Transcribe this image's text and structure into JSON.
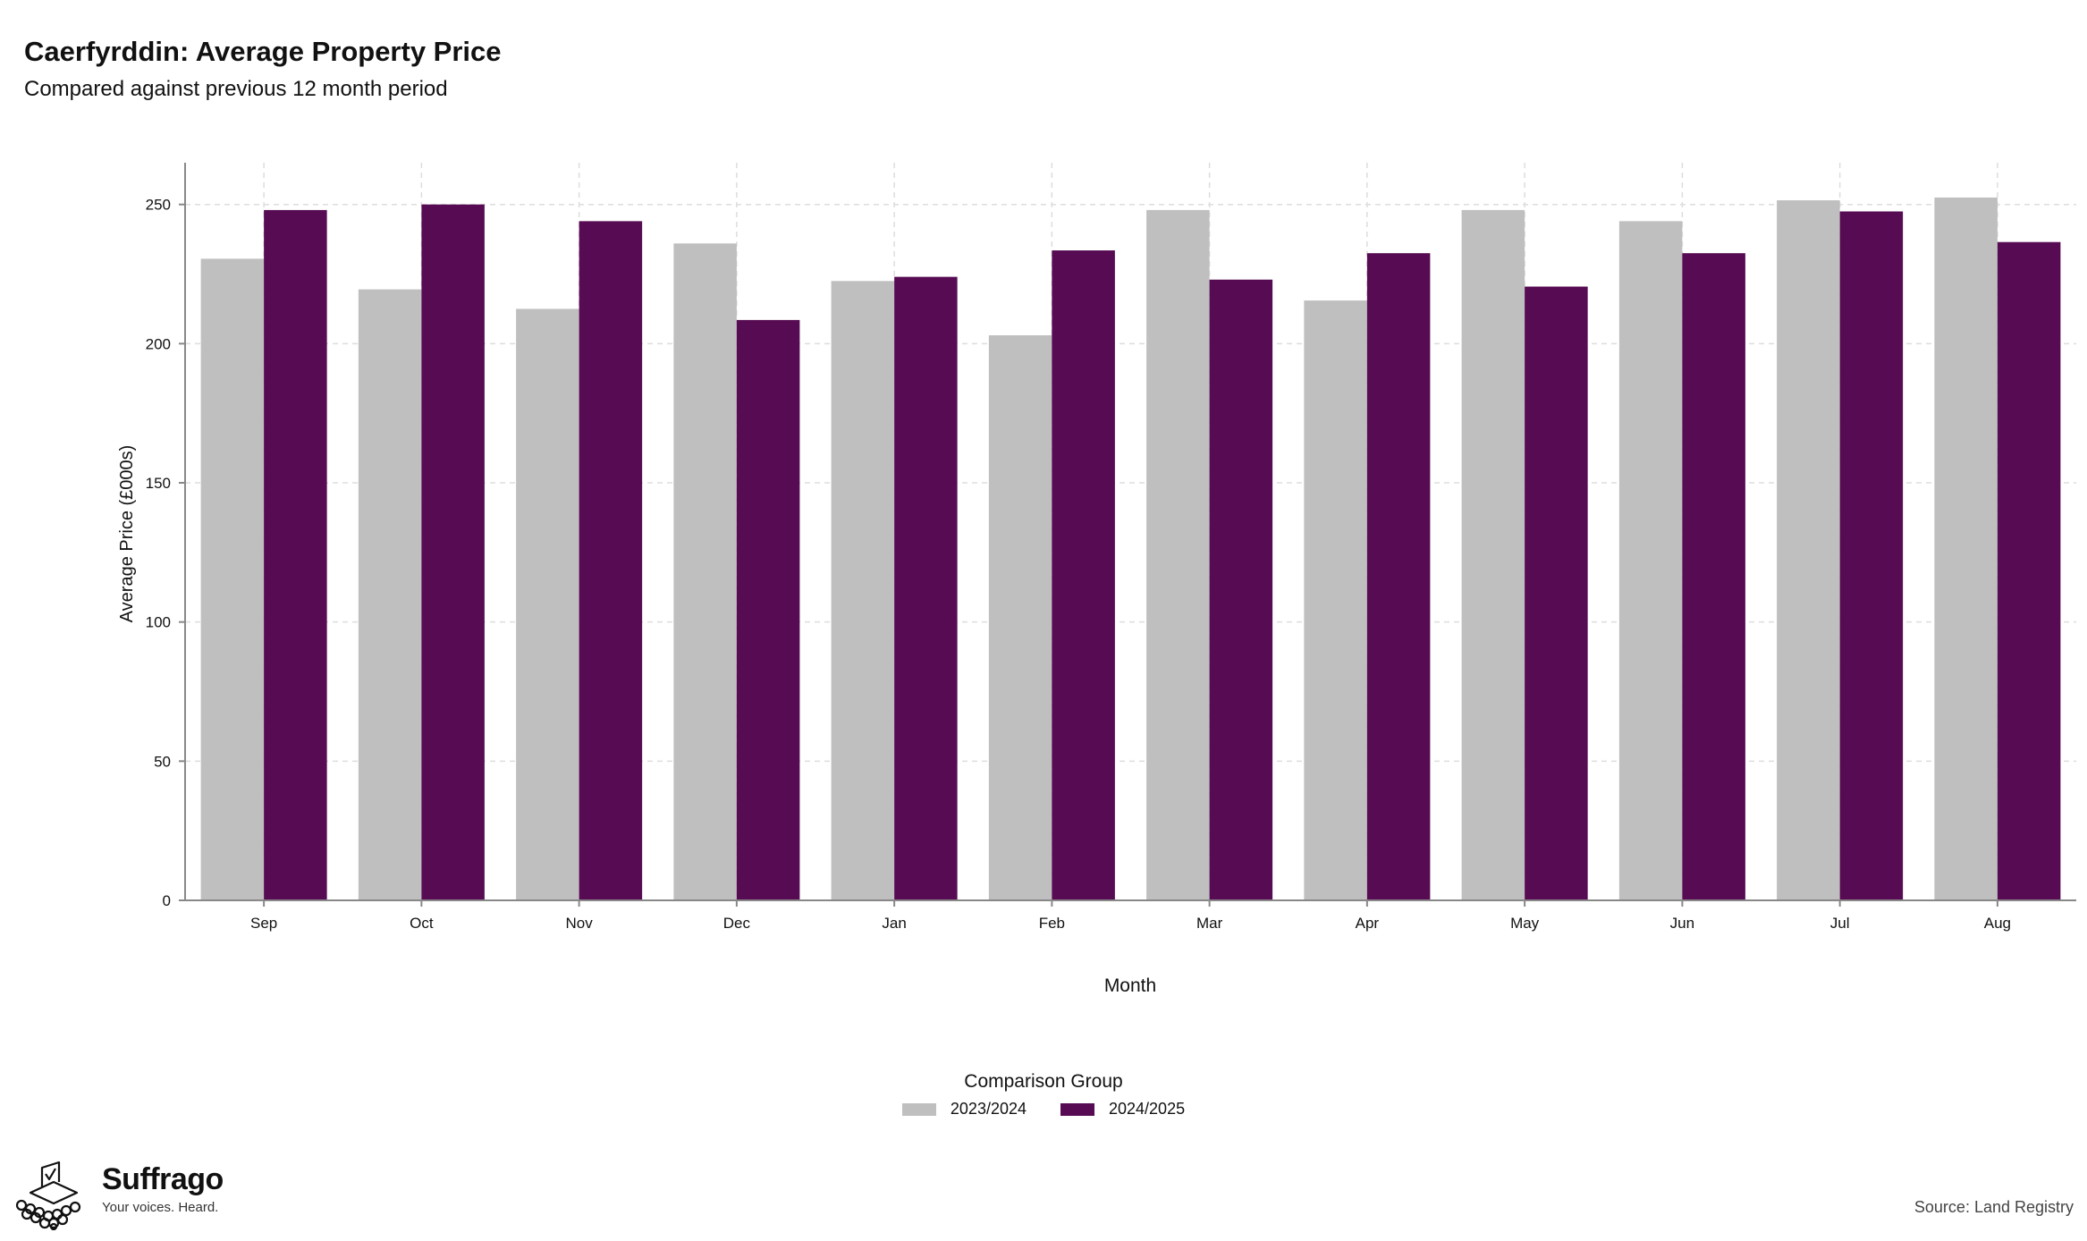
{
  "title": "Caerfyrddin: Average Property Price",
  "subtitle": "Compared against previous 12 month period",
  "source": "Source: Land Registry",
  "logo": {
    "name": "Suffrago",
    "tagline": "Your voices. Heard.",
    "icon": "ballot-box-icon"
  },
  "legend": {
    "title": "Comparison Group"
  },
  "colors": {
    "series_2023_2024": "#bfbfbf",
    "series_2024_2025": "#560b52",
    "grid": "#dddddd",
    "axis": "#888888"
  },
  "chart_data": {
    "type": "bar",
    "xlabel": "Month",
    "ylabel": "Average Price (£000s)",
    "categories": [
      "Sep",
      "Oct",
      "Nov",
      "Dec",
      "Jan",
      "Feb",
      "Mar",
      "Apr",
      "May",
      "Jun",
      "Jul",
      "Aug"
    ],
    "yticks": [
      0,
      50,
      100,
      150,
      200,
      250
    ],
    "ylim": [
      0,
      265
    ],
    "grid": true,
    "legend_position": "bottom",
    "series": [
      {
        "name": "2023/2024",
        "values": [
          230.5,
          219.5,
          212.5,
          236,
          222.5,
          203,
          248,
          215.5,
          248,
          244,
          251.5,
          252.5
        ]
      },
      {
        "name": "2024/2025",
        "values": [
          248,
          250,
          244,
          208.5,
          224,
          233.5,
          223,
          232.5,
          220.5,
          232.5,
          247.5,
          236.5
        ]
      }
    ]
  }
}
